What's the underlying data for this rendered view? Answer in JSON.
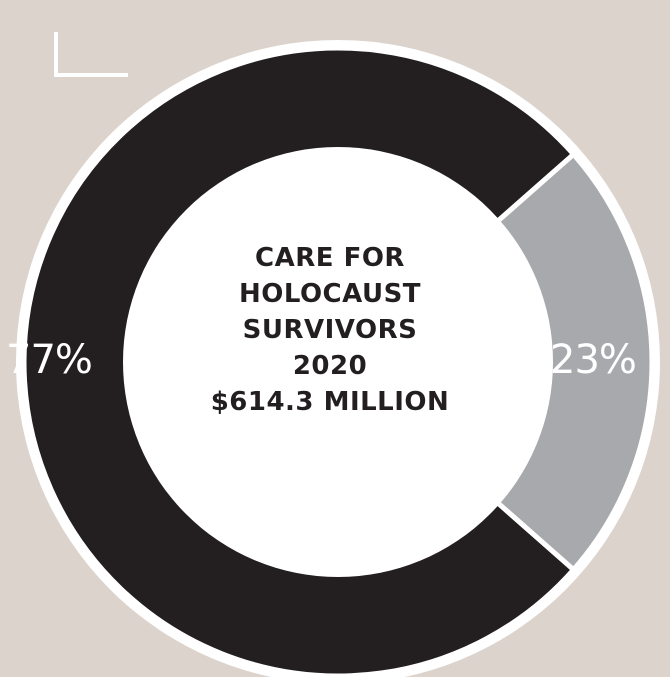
{
  "chart_data": {
    "type": "pie",
    "variant": "donut",
    "title_lines": [
      "CARE FOR",
      "HOLOCAUST",
      "SURVIVORS",
      "2020",
      "$614.3 MILLION"
    ],
    "slices": [
      {
        "label": "77%",
        "value": 77,
        "color": "#231f20"
      },
      {
        "label": "23%",
        "value": 23,
        "color": "#a7a9ac"
      }
    ]
  },
  "colors": {
    "background": "#dbd3cc",
    "ring_border": "#ffffff",
    "center_fill": "#ffffff",
    "text_dark": "#231f20",
    "text_light": "#ffffff"
  },
  "decorations": {
    "corner_bracket": "corner-bracket-icon"
  }
}
